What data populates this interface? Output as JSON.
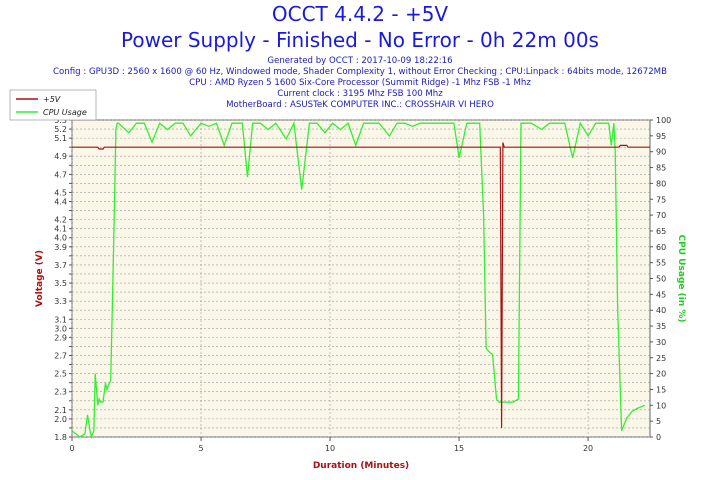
{
  "header": {
    "title": "OCCT 4.4.2 - +5V",
    "subtitle": "Power Supply - Finished - No Error - 0h 22m 00s",
    "generated": "Generated by OCCT : 2017-10-09 18:22:16",
    "config": "Config : GPU3D : 2560 x 1600 @ 60 Hz, Windowed mode, Shader Complexity 1, without Error Checking ; CPU:Linpack : 64bits mode, 12672MB",
    "cpu": "CPU : AMD Ryzen 5 1600 Six-Core Processor (Summit Ridge) -1 Mhz FSB -1 Mhz",
    "clock": "Current clock : 3195 Mhz FSB 100 Mhz",
    "motherboard": "MotherBoard : ASUSTeK COMPUTER INC.: CROSSHAIR VI HERO"
  },
  "colors": {
    "voltage": "#aa1111",
    "cpu": "#33ee33",
    "plot_bg": "#fbf7e8",
    "grid": "#999999",
    "title": "#1a1ad8",
    "info": "#1a1ab8"
  },
  "chart_data": {
    "type": "line",
    "xlabel": "Duration (Minutes)",
    "ylabel_left": "Voltage (V)",
    "ylabel_right": "CPU Usage (in %)",
    "xlim": [
      0,
      22.4
    ],
    "ylim_left": [
      1.8,
      5.3
    ],
    "ylim_right": [
      0,
      100
    ],
    "x_ticks": [
      0,
      5,
      10,
      15,
      20
    ],
    "y_left_ticks": [
      1.8,
      1.9,
      2.0,
      2.1,
      2.2,
      2.3,
      2.4,
      2.5,
      2.6,
      2.7,
      2.8,
      2.9,
      3.0,
      3.1,
      3.2,
      3.3,
      3.4,
      3.5,
      3.6,
      3.7,
      3.8,
      3.9,
      4.0,
      4.1,
      4.2,
      4.3,
      4.4,
      4.5,
      4.6,
      4.7,
      4.8,
      4.9,
      5.0,
      5.1,
      5.2,
      5.3
    ],
    "y_left_labels": [
      "1.8",
      "",
      "2.0",
      "2.1",
      "",
      "2.3",
      "",
      "2.5",
      "",
      "2.7",
      "",
      "2.9",
      "3.0",
      "3.1",
      "",
      "3.3",
      "",
      "3.5",
      "",
      "3.7",
      "",
      "3.9",
      "4.0",
      "4.1",
      "4.2",
      "",
      "4.4",
      "4.5",
      "",
      "4.7",
      "",
      "4.9",
      "",
      "5.1",
      "5.2",
      "5.3"
    ],
    "y_right_ticks": [
      0,
      5,
      10,
      15,
      20,
      25,
      30,
      35,
      40,
      45,
      50,
      55,
      60,
      65,
      70,
      75,
      80,
      85,
      90,
      95,
      100
    ],
    "grid": true,
    "legend_position": "top-left",
    "series": [
      {
        "name": "+5V",
        "axis": "left",
        "x": [
          0,
          1.0,
          1.05,
          1.2,
          1.25,
          16.6,
          16.65,
          16.7,
          16.75,
          21.2,
          21.25,
          21.5,
          21.55,
          22.4
        ],
        "y": [
          5.0,
          5.0,
          4.98,
          4.98,
          5.0,
          5.0,
          1.9,
          5.05,
          5.0,
          5.0,
          5.02,
          5.02,
          5.0,
          5.0
        ]
      },
      {
        "name": "CPU Usage",
        "axis": "right",
        "x": [
          0,
          0.3,
          0.5,
          0.6,
          0.7,
          0.75,
          0.85,
          0.9,
          1.0,
          1.05,
          1.1,
          1.2,
          1.3,
          1.35,
          1.5,
          1.6,
          1.7,
          1.75,
          1.8,
          2.2,
          2.5,
          2.8,
          3.1,
          3.4,
          3.7,
          4.0,
          4.3,
          4.6,
          5.0,
          5.3,
          5.6,
          5.9,
          6.2,
          6.6,
          6.8,
          7.0,
          7.3,
          7.6,
          7.9,
          8.3,
          8.6,
          8.9,
          9.2,
          9.5,
          9.8,
          10.1,
          10.4,
          10.7,
          11.0,
          11.3,
          11.6,
          11.9,
          12.3,
          12.6,
          12.9,
          13.2,
          13.5,
          13.8,
          14.1,
          14.4,
          14.8,
          15.0,
          15.3,
          15.6,
          15.8,
          15.95,
          16.05,
          16.15,
          16.3,
          16.45,
          16.55,
          16.7,
          16.9,
          17.1,
          17.3,
          17.4,
          17.5,
          17.6,
          17.7,
          17.8,
          18.0,
          18.2,
          18.5,
          18.8,
          19.1,
          19.4,
          19.7,
          20.0,
          20.3,
          20.6,
          20.8,
          20.9,
          21.0,
          21.05,
          21.15,
          21.3,
          21.5,
          21.7,
          21.9,
          22.2
        ],
        "y": [
          2,
          0,
          1,
          7,
          2,
          0,
          2,
          20,
          10,
          12,
          11,
          11,
          17,
          15,
          18,
          55,
          97,
          99,
          99,
          96,
          99,
          99,
          93,
          99,
          97,
          99,
          99,
          95,
          99,
          98,
          99,
          92,
          99,
          99,
          82,
          99,
          99,
          97,
          99,
          94,
          99,
          78,
          99,
          99,
          96,
          99,
          97,
          99,
          92,
          99,
          99,
          99,
          95,
          99,
          99,
          98,
          99,
          99,
          99,
          99,
          99,
          88,
          99,
          99,
          99,
          70,
          28,
          27,
          26,
          12,
          11,
          11,
          11,
          11,
          12,
          99,
          99,
          99,
          99,
          99,
          98,
          97,
          99,
          99,
          99,
          88,
          99,
          95,
          99,
          99,
          99,
          92,
          99,
          90,
          40,
          2,
          6,
          8,
          9,
          10
        ]
      }
    ]
  }
}
